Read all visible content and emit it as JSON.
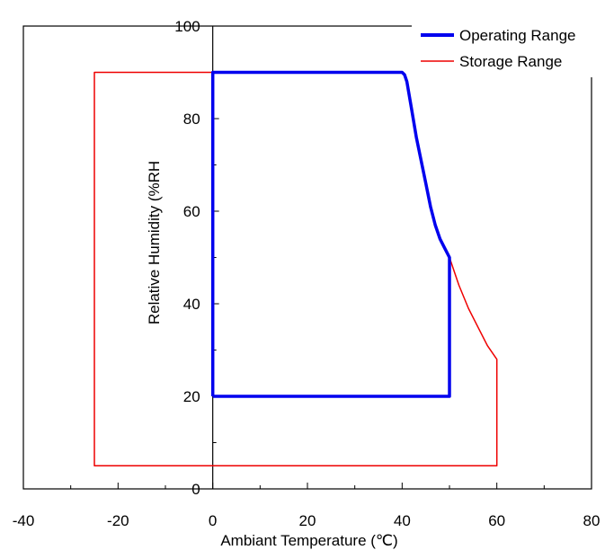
{
  "chart_data": {
    "type": "line",
    "title": "",
    "xlabel": "Ambiant Temperature (℃)",
    "ylabel": "Relative Humidity (%RH",
    "xlim": [
      -40,
      80
    ],
    "ylim": [
      0,
      100
    ],
    "x_ticks": [
      -40,
      -20,
      0,
      20,
      40,
      60,
      80
    ],
    "y_ticks": [
      0,
      20,
      40,
      60,
      80,
      100
    ],
    "x_tick_labels": [
      "-40",
      "-20",
      "0",
      "20",
      "40",
      "60",
      "80"
    ],
    "y_tick_labels": [
      "0",
      "20",
      "40",
      "60",
      "80",
      "100"
    ],
    "grid": false,
    "legend_position": "top-right",
    "series": [
      {
        "name": "Operating Range",
        "color": "#0000ee",
        "points": [
          [
            0,
            20
          ],
          [
            0,
            90
          ],
          [
            40,
            90
          ],
          [
            40.5,
            89.5
          ],
          [
            41,
            88
          ],
          [
            42,
            82
          ],
          [
            43,
            76
          ],
          [
            44,
            71
          ],
          [
            45,
            66
          ],
          [
            46,
            61
          ],
          [
            47,
            57
          ],
          [
            48,
            54
          ],
          [
            49,
            52
          ],
          [
            50,
            50
          ],
          [
            50,
            20
          ],
          [
            0,
            20
          ]
        ]
      },
      {
        "name": "Storage Range",
        "color": "#ee0000",
        "points": [
          [
            50,
            50
          ],
          [
            52,
            44
          ],
          [
            54,
            39
          ],
          [
            56,
            35
          ],
          [
            58,
            31
          ],
          [
            60,
            28
          ],
          [
            60,
            5
          ],
          [
            -25,
            5
          ],
          [
            -25,
            90
          ],
          [
            0,
            90
          ]
        ]
      }
    ]
  }
}
